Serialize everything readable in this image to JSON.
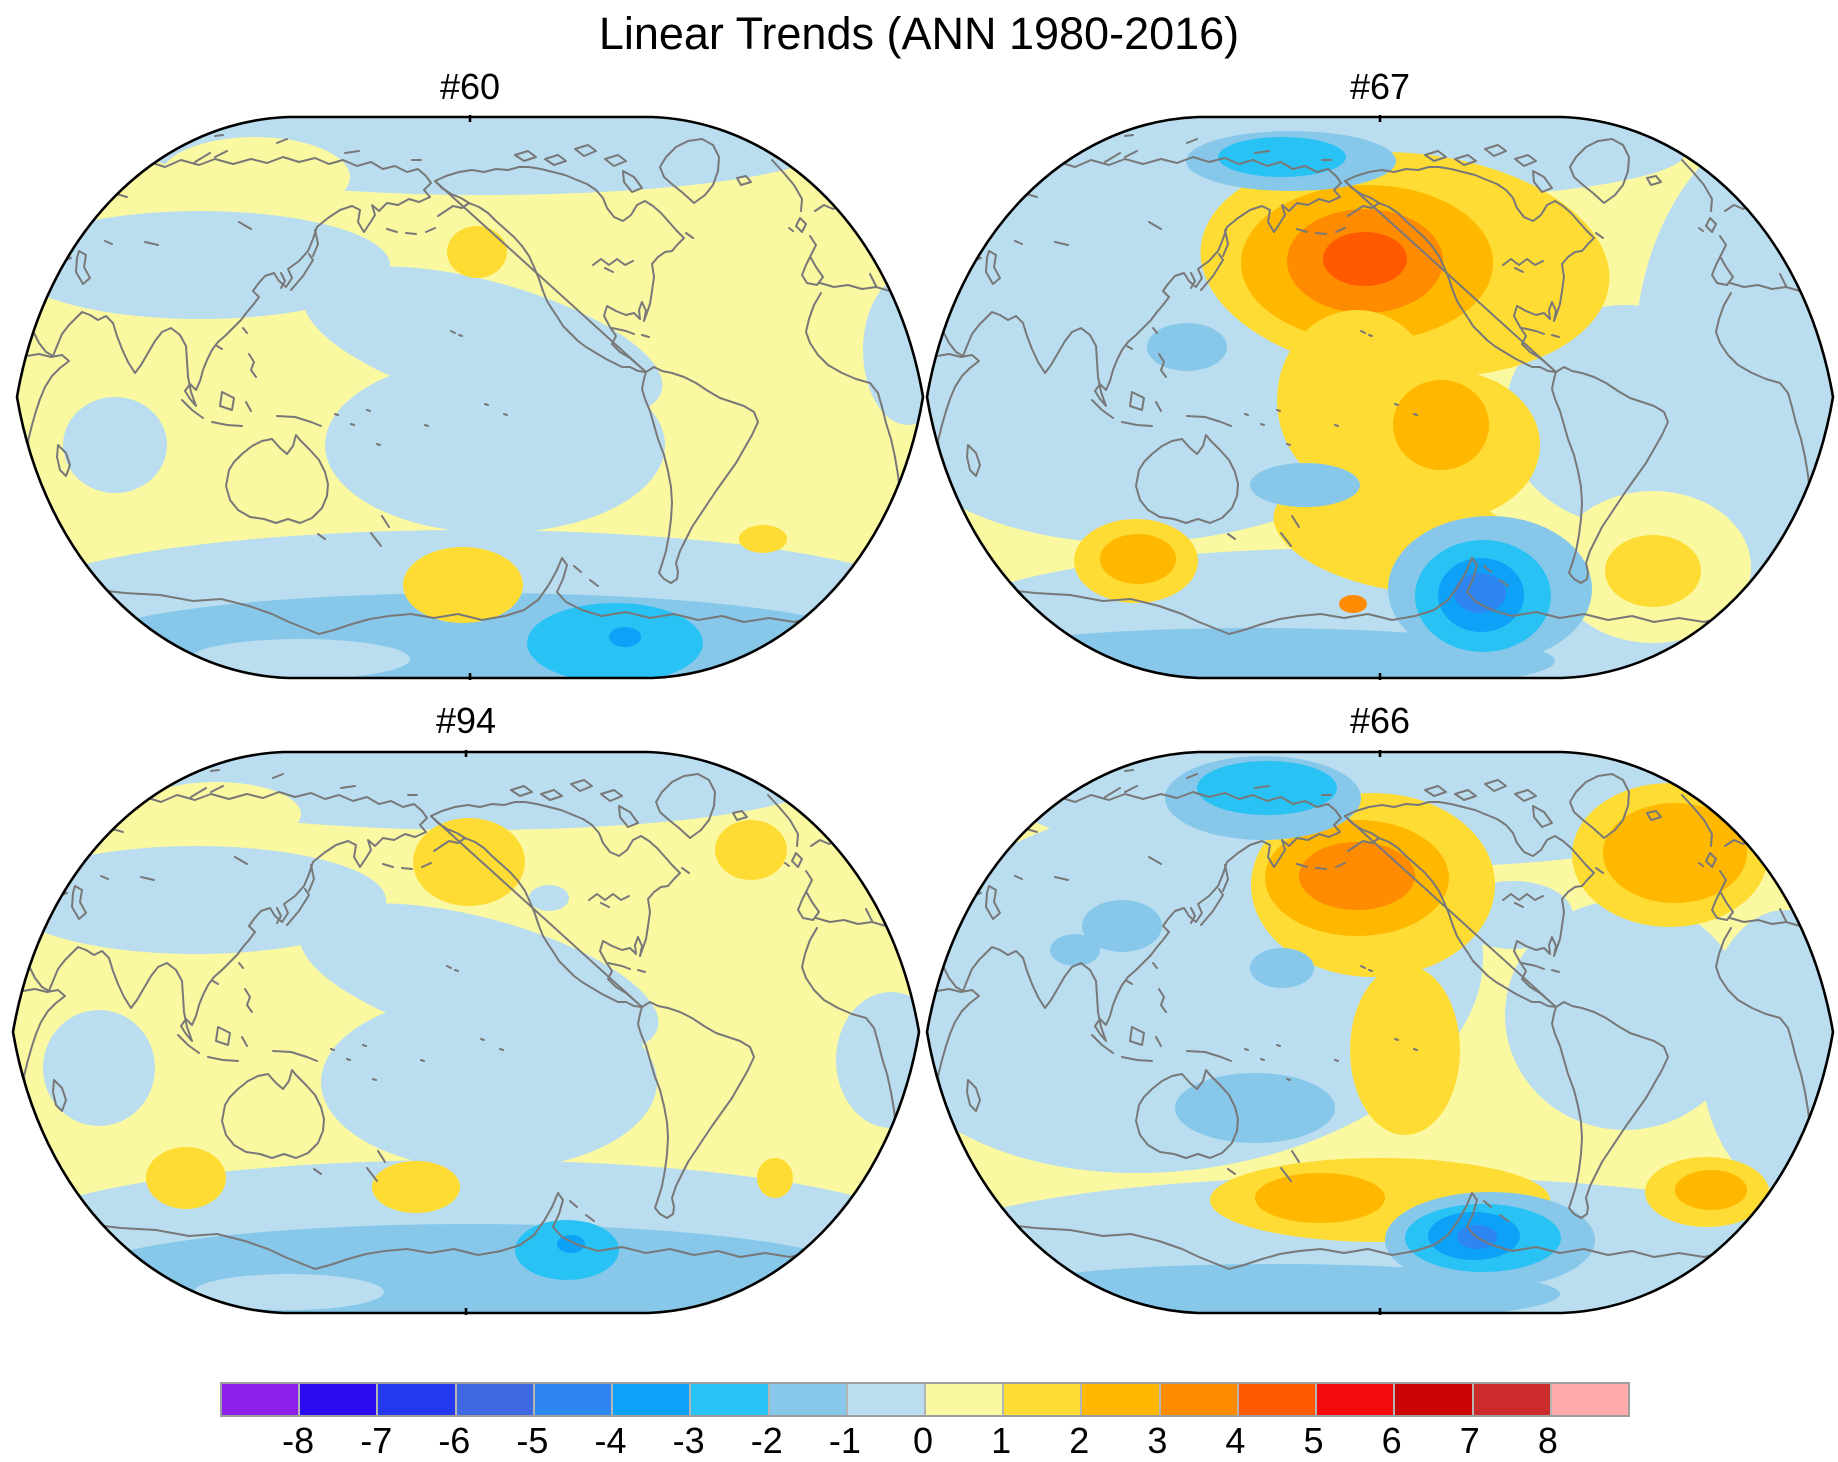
{
  "title": "Linear Trends (ANN 1980-2016)",
  "colorbar": {
    "orientation": "horizontal",
    "tick_labels": [
      "-8",
      "-7",
      "-6",
      "-5",
      "-4",
      "-3",
      "-2",
      "-1",
      "0",
      "1",
      "2",
      "3",
      "4",
      "5",
      "6",
      "7",
      "8"
    ],
    "colors": [
      "#8B21E8",
      "#2B0BF0",
      "#2439EE",
      "#3F69E0",
      "#2E86F0",
      "#0DA1F8",
      "#29C2F5",
      "#87C8EA",
      "#BADEF0",
      "#FBF8A2",
      "#FFDC33",
      "#FFB700",
      "#FF8C00",
      "#FF5A00",
      "#F40B0B",
      "#CC0404",
      "#CC2B2B",
      "#FFABAB"
    ],
    "border_color": "#9e9e9e"
  },
  "map": {
    "base_level": 9,
    "outline_color": "#000000",
    "coast_color": "#787878"
  },
  "panels": [
    {
      "id": "#60",
      "features": [
        [
          8,
          470,
          28,
          350,
          52,
          0
        ],
        [
          9,
          240,
          62,
          95,
          40,
          0
        ],
        [
          8,
          185,
          150,
          190,
          54,
          0
        ],
        [
          8,
          468,
          228,
          185,
          62,
          15
        ],
        [
          8,
          480,
          330,
          170,
          88,
          0
        ],
        [
          8,
          100,
          330,
          52,
          48,
          0
        ],
        [
          8,
          893,
          235,
          45,
          75,
          0
        ],
        [
          8,
          455,
          495,
          470,
          80,
          0
        ],
        [
          7,
          462,
          530,
          398,
          52,
          0
        ],
        [
          8,
          285,
          544,
          110,
          20,
          0
        ],
        [
          6,
          600,
          528,
          88,
          40,
          0
        ],
        [
          5,
          610,
          522,
          16,
          10,
          0
        ],
        [
          10,
          462,
          137,
          30,
          26,
          0
        ],
        [
          10,
          448,
          470,
          60,
          38,
          0
        ],
        [
          10,
          748,
          424,
          24,
          14,
          0
        ]
      ]
    },
    {
      "id": "#67",
      "features": [
        [
          8,
          245,
          230,
          312,
          195,
          -8
        ],
        [
          8,
          420,
          38,
          340,
          48,
          0
        ],
        [
          8,
          810,
          15,
          90,
          25,
          0
        ],
        [
          8,
          890,
          240,
          180,
          245,
          0
        ],
        [
          8,
          700,
          300,
          120,
          110,
          0
        ],
        [
          8,
          575,
          140,
          50,
          95,
          0
        ],
        [
          8,
          430,
          508,
          410,
          75,
          0
        ],
        [
          7,
          330,
          546,
          300,
          33,
          0
        ],
        [
          10,
          480,
          150,
          205,
          112,
          5
        ],
        [
          11,
          442,
          148,
          126,
          78,
          0
        ],
        [
          12,
          440,
          146,
          78,
          52,
          0
        ],
        [
          13,
          440,
          144,
          42,
          27,
          0
        ],
        [
          7,
          366,
          46,
          105,
          30,
          0
        ],
        [
          6,
          357,
          42,
          64,
          20,
          0
        ],
        [
          10,
          432,
          285,
          80,
          90,
          0
        ],
        [
          10,
          520,
          330,
          95,
          75,
          0
        ],
        [
          11,
          516,
          310,
          48,
          45,
          0
        ],
        [
          10,
          472,
          420,
          125,
          55,
          10
        ],
        [
          10,
          211,
          446,
          62,
          42,
          0
        ],
        [
          11,
          213,
          444,
          38,
          25,
          0
        ],
        [
          9,
          728,
          452,
          98,
          76,
          0
        ],
        [
          10,
          728,
          456,
          48,
          36,
          0
        ],
        [
          7,
          380,
          370,
          55,
          22,
          0
        ],
        [
          7,
          262,
          232,
          40,
          24,
          0
        ],
        [
          7,
          565,
          474,
          102,
          73,
          0
        ],
        [
          6,
          558,
          481,
          68,
          56,
          0
        ],
        [
          5,
          556,
          480,
          43,
          37,
          0
        ],
        [
          4,
          555,
          478,
          26,
          20,
          0
        ],
        [
          12,
          428,
          489,
          14,
          9,
          0
        ]
      ]
    },
    {
      "id": "#94",
      "features": [
        [
          8,
          465,
          28,
          350,
          52,
          0
        ],
        [
          9,
          205,
          64,
          85,
          32,
          0
        ],
        [
          8,
          185,
          150,
          190,
          54,
          0
        ],
        [
          8,
          468,
          230,
          185,
          62,
          15
        ],
        [
          8,
          478,
          332,
          168,
          88,
          0
        ],
        [
          8,
          88,
          318,
          56,
          58,
          0
        ],
        [
          8,
          880,
          310,
          55,
          68,
          0
        ],
        [
          8,
          538,
          148,
          20,
          13,
          0
        ],
        [
          8,
          455,
          492,
          470,
          82,
          0
        ],
        [
          7,
          460,
          528,
          398,
          54,
          0
        ],
        [
          8,
          278,
          542,
          95,
          18,
          0
        ],
        [
          6,
          556,
          500,
          52,
          30,
          0
        ],
        [
          5,
          560,
          494,
          14,
          9,
          0
        ],
        [
          10,
          458,
          112,
          56,
          44,
          0
        ],
        [
          10,
          740,
          100,
          36,
          30,
          0
        ],
        [
          10,
          175,
          428,
          40,
          31,
          0
        ],
        [
          10,
          405,
          437,
          44,
          26,
          0
        ],
        [
          10,
          764,
          428,
          18,
          20,
          0
        ]
      ]
    },
    {
      "id": "#66",
      "features": [
        [
          8,
          255,
          235,
          305,
          185,
          -8
        ],
        [
          8,
          460,
          48,
          372,
          70,
          0
        ],
        [
          8,
          588,
          165,
          60,
          34,
          0
        ],
        [
          8,
          700,
          265,
          120,
          115,
          0
        ],
        [
          8,
          860,
          300,
          85,
          140,
          0
        ],
        [
          8,
          455,
          502,
          465,
          76,
          0
        ],
        [
          7,
          350,
          544,
          285,
          30,
          0
        ],
        [
          10,
          448,
          135,
          122,
          92,
          0
        ],
        [
          11,
          432,
          128,
          92,
          58,
          0
        ],
        [
          12,
          432,
          126,
          58,
          34,
          0
        ],
        [
          7,
          338,
          48,
          98,
          42,
          0
        ],
        [
          6,
          342,
          38,
          70,
          27,
          0
        ],
        [
          10,
          480,
          300,
          55,
          85,
          0
        ],
        [
          7,
          197,
          176,
          40,
          26,
          0
        ],
        [
          7,
          150,
          200,
          25,
          16,
          0
        ],
        [
          7,
          357,
          218,
          32,
          20,
          0
        ],
        [
          7,
          330,
          358,
          80,
          35,
          0
        ],
        [
          10,
          745,
          105,
          98,
          72,
          0
        ],
        [
          11,
          750,
          103,
          72,
          50,
          0
        ],
        [
          10,
          455,
          450,
          170,
          42,
          0
        ],
        [
          11,
          395,
          448,
          65,
          25,
          0
        ],
        [
          10,
          782,
          442,
          62,
          35,
          0
        ],
        [
          11,
          786,
          440,
          36,
          20,
          0
        ],
        [
          7,
          565,
          490,
          105,
          48,
          0
        ],
        [
          6,
          558,
          488,
          78,
          34,
          0
        ],
        [
          5,
          549,
          486,
          46,
          24,
          0
        ],
        [
          4,
          552,
          487,
          20,
          12,
          0
        ]
      ]
    }
  ],
  "chart_data": {
    "type": "heatmap",
    "subtype": "filled_contour_world_maps",
    "title": "Linear Trends (ANN 1980-2016)",
    "season": "ANN",
    "period": "1980-2016",
    "layout": "2x2 panel grid with one shared horizontal colorbar at bottom",
    "projection": "Robinson-style ellipse, Pacific-centered (left edge near 30E)",
    "panel_labels": [
      "#60",
      "#67",
      "#94",
      "#66"
    ],
    "colorbar": {
      "n_cells": 18,
      "tick_values": [
        -8,
        -7,
        -6,
        -5,
        -4,
        -3,
        -2,
        -1,
        0,
        1,
        2,
        3,
        4,
        5,
        6,
        7,
        8
      ],
      "cell_colors": [
        "#8B21E8",
        "#2B0BF0",
        "#2439EE",
        "#3F69E0",
        "#2E86F0",
        "#0DA1F8",
        "#29C2F5",
        "#87C8EA",
        "#BADEF0",
        "#FBF8A2",
        "#FFDC33",
        "#FFB700",
        "#FF8C00",
        "#FF5A00",
        "#F40B0B",
        "#CC0404",
        "#CC2B2B",
        "#FFABAB"
      ]
    },
    "panel_summaries": [
      "#60: weak pattern; mostly 0..1 with -1..0 over Arctic, central Asia, tropical Pacific and Indian Ocean; Southern Ocean band to -4 south of New Zealand/Ross Sea; small +1..2 spots near Bering Sea, South Pacific and South Atlantic",
      "#67: strong +4..5 center over N Pacific/Aleutians with +1..3 plume extending SE to S America; -1 over most of Asia/W Pacific and E Atlantic; -3 Arctic spot; -5 closed low near Antarctic Peninsula/Amundsen Sea; +2 spots in SW Indian sector and S Atlantic",
      "#94: like #60 but stronger; +1..2 blob over Gulf of Alaska, +1..2 N Atlantic blob, +1..2 spots along southern mid-latitudes; Southern Ocean band with -3..-4 minimum near Ross Sea",
      "#66: like #67 slightly weaker; +3..4 N Pacific center, -3 Arctic spot, -4..-5 Amundsen Sea low, +2..3 N Atlantic blob, +1..2 southern mid-latitude band"
    ]
  }
}
